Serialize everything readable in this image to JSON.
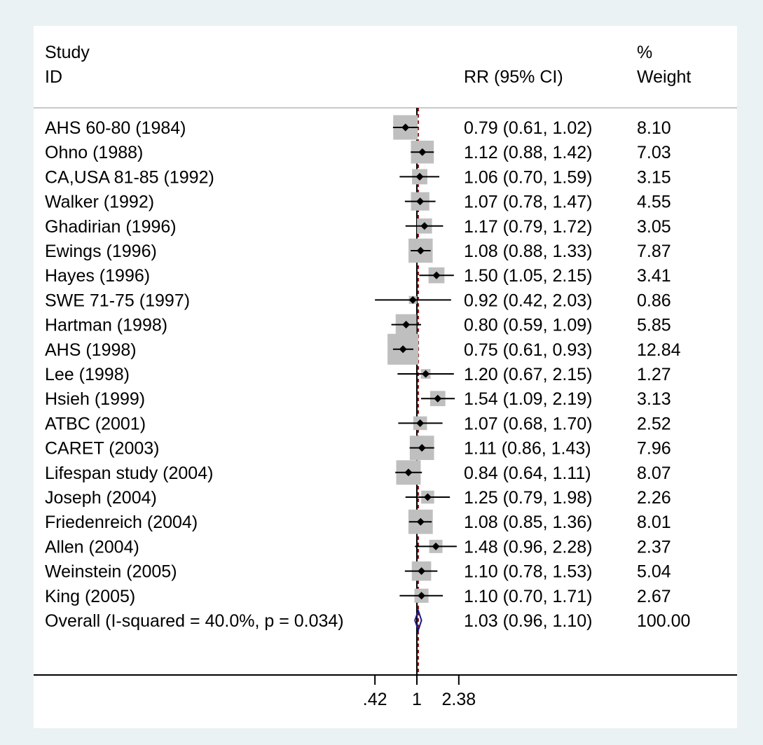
{
  "header": {
    "study_line1": "Study",
    "study_line2": "ID",
    "rr_label": "RR (95% CI)",
    "weight_line1": "%",
    "weight_line2": "Weight"
  },
  "chart_data": {
    "type": "forest",
    "x_scale": "log",
    "xlim": [
      0.42,
      2.38
    ],
    "x_ticks": [
      ".42",
      "1",
      "2.38"
    ],
    "reference_line": 1,
    "studies": [
      {
        "id": "AHS 60-80 (1984)",
        "rr": 0.79,
        "lo": 0.61,
        "hi": 1.02,
        "rr_text": "0.79 (0.61, 1.02)",
        "weight": 8.1,
        "weight_text": "8.10"
      },
      {
        "id": "Ohno (1988)",
        "rr": 1.12,
        "lo": 0.88,
        "hi": 1.42,
        "rr_text": "1.12 (0.88, 1.42)",
        "weight": 7.03,
        "weight_text": "7.03"
      },
      {
        "id": "CA,USA 81-85 (1992)",
        "rr": 1.06,
        "lo": 0.7,
        "hi": 1.59,
        "rr_text": "1.06 (0.70, 1.59)",
        "weight": 3.15,
        "weight_text": "3.15"
      },
      {
        "id": "Walker (1992)",
        "rr": 1.07,
        "lo": 0.78,
        "hi": 1.47,
        "rr_text": "1.07 (0.78, 1.47)",
        "weight": 4.55,
        "weight_text": "4.55"
      },
      {
        "id": "Ghadirian (1996)",
        "rr": 1.17,
        "lo": 0.79,
        "hi": 1.72,
        "rr_text": "1.17 (0.79, 1.72)",
        "weight": 3.05,
        "weight_text": "3.05"
      },
      {
        "id": "Ewings (1996)",
        "rr": 1.08,
        "lo": 0.88,
        "hi": 1.33,
        "rr_text": "1.08 (0.88, 1.33)",
        "weight": 7.87,
        "weight_text": "7.87"
      },
      {
        "id": "Hayes (1996)",
        "rr": 1.5,
        "lo": 1.05,
        "hi": 2.15,
        "rr_text": "1.50 (1.05, 2.15)",
        "weight": 3.41,
        "weight_text": "3.41"
      },
      {
        "id": "SWE 71-75 (1997)",
        "rr": 0.92,
        "lo": 0.42,
        "hi": 2.03,
        "rr_text": "0.92 (0.42, 2.03)",
        "weight": 0.86,
        "weight_text": "0.86"
      },
      {
        "id": "Hartman (1998)",
        "rr": 0.8,
        "lo": 0.59,
        "hi": 1.09,
        "rr_text": "0.80 (0.59, 1.09)",
        "weight": 5.85,
        "weight_text": "5.85"
      },
      {
        "id": "AHS (1998)",
        "rr": 0.75,
        "lo": 0.61,
        "hi": 0.93,
        "rr_text": "0.75 (0.61, 0.93)",
        "weight": 12.84,
        "weight_text": "12.84"
      },
      {
        "id": "Lee (1998)",
        "rr": 1.2,
        "lo": 0.67,
        "hi": 2.15,
        "rr_text": "1.20 (0.67, 2.15)",
        "weight": 1.27,
        "weight_text": "1.27"
      },
      {
        "id": "Hsieh (1999)",
        "rr": 1.54,
        "lo": 1.09,
        "hi": 2.19,
        "rr_text": "1.54 (1.09, 2.19)",
        "weight": 3.13,
        "weight_text": "3.13"
      },
      {
        "id": "ATBC (2001)",
        "rr": 1.07,
        "lo": 0.68,
        "hi": 1.7,
        "rr_text": "1.07 (0.68, 1.70)",
        "weight": 2.52,
        "weight_text": "2.52"
      },
      {
        "id": "CARET (2003)",
        "rr": 1.11,
        "lo": 0.86,
        "hi": 1.43,
        "rr_text": "1.11 (0.86, 1.43)",
        "weight": 7.96,
        "weight_text": "7.96"
      },
      {
        "id": "Lifespan study (2004)",
        "rr": 0.84,
        "lo": 0.64,
        "hi": 1.11,
        "rr_text": "0.84 (0.64, 1.11)",
        "weight": 8.07,
        "weight_text": "8.07"
      },
      {
        "id": "Joseph (2004)",
        "rr": 1.25,
        "lo": 0.79,
        "hi": 1.98,
        "rr_text": "1.25 (0.79, 1.98)",
        "weight": 2.26,
        "weight_text": "2.26"
      },
      {
        "id": "Friedenreich (2004)",
        "rr": 1.08,
        "lo": 0.85,
        "hi": 1.36,
        "rr_text": "1.08 (0.85, 1.36)",
        "weight": 8.01,
        "weight_text": "8.01"
      },
      {
        "id": "Allen (2004)",
        "rr": 1.48,
        "lo": 0.96,
        "hi": 2.28,
        "rr_text": "1.48 (0.96, 2.28)",
        "weight": 2.37,
        "weight_text": "2.37"
      },
      {
        "id": "Weinstein (2005)",
        "rr": 1.1,
        "lo": 0.78,
        "hi": 1.53,
        "rr_text": "1.10 (0.78, 1.53)",
        "weight": 5.04,
        "weight_text": "5.04"
      },
      {
        "id": "King (2005)",
        "rr": 1.1,
        "lo": 0.7,
        "hi": 1.71,
        "rr_text": "1.10 (0.70, 1.71)",
        "weight": 2.67,
        "weight_text": "2.67"
      }
    ],
    "overall": {
      "label": "Overall  (I-squared = 40.0%, p = 0.034)",
      "rr": 1.03,
      "lo": 0.96,
      "hi": 1.1,
      "rr_text": "1.03 (0.96, 1.10)",
      "weight_text": "100.00"
    },
    "colors": {
      "page_bg": "#eaf2f3",
      "panel_bg": "#ffffff",
      "weight_box": "#bfbfbf",
      "point": "#000000",
      "overall_diamond": "#1a1a8c",
      "overall_line": "#8b1a1a",
      "reference_line": "#000000"
    }
  }
}
